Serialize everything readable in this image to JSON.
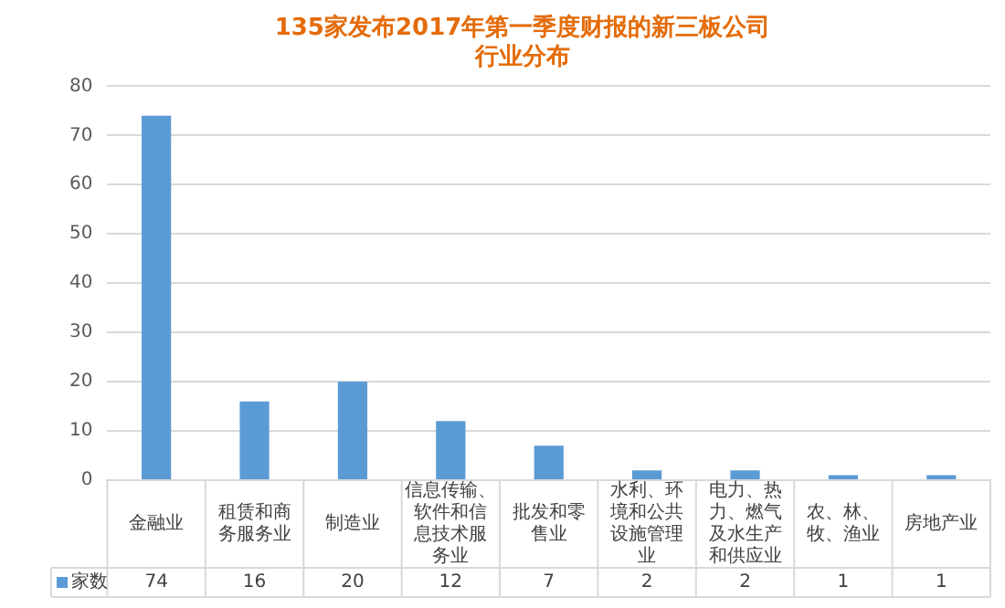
{
  "chart_data": {
    "type": "bar",
    "title": "135家发布2017年第一季度财报的新三板公司行业分布",
    "categories": [
      "金融业",
      "租赁和商务服务业",
      "制造业",
      "信息传输、软件和信息技术服务业",
      "批发和零售业",
      "水利、环境和公共设施管理业",
      "电力、热力、燃气及水生产和供应业",
      "农、林、牧、渔业",
      "房地产业"
    ],
    "series": [
      {
        "name": "家数",
        "color": "#5b9bd5",
        "values": [
          74,
          16,
          20,
          12,
          7,
          2,
          2,
          1,
          1
        ]
      }
    ],
    "ylim": [
      0,
      80
    ],
    "yticks": [
      0,
      10,
      20,
      30,
      40,
      50,
      60,
      70,
      80
    ],
    "grid": "y",
    "legend": "bottom",
    "data_labels": true
  }
}
